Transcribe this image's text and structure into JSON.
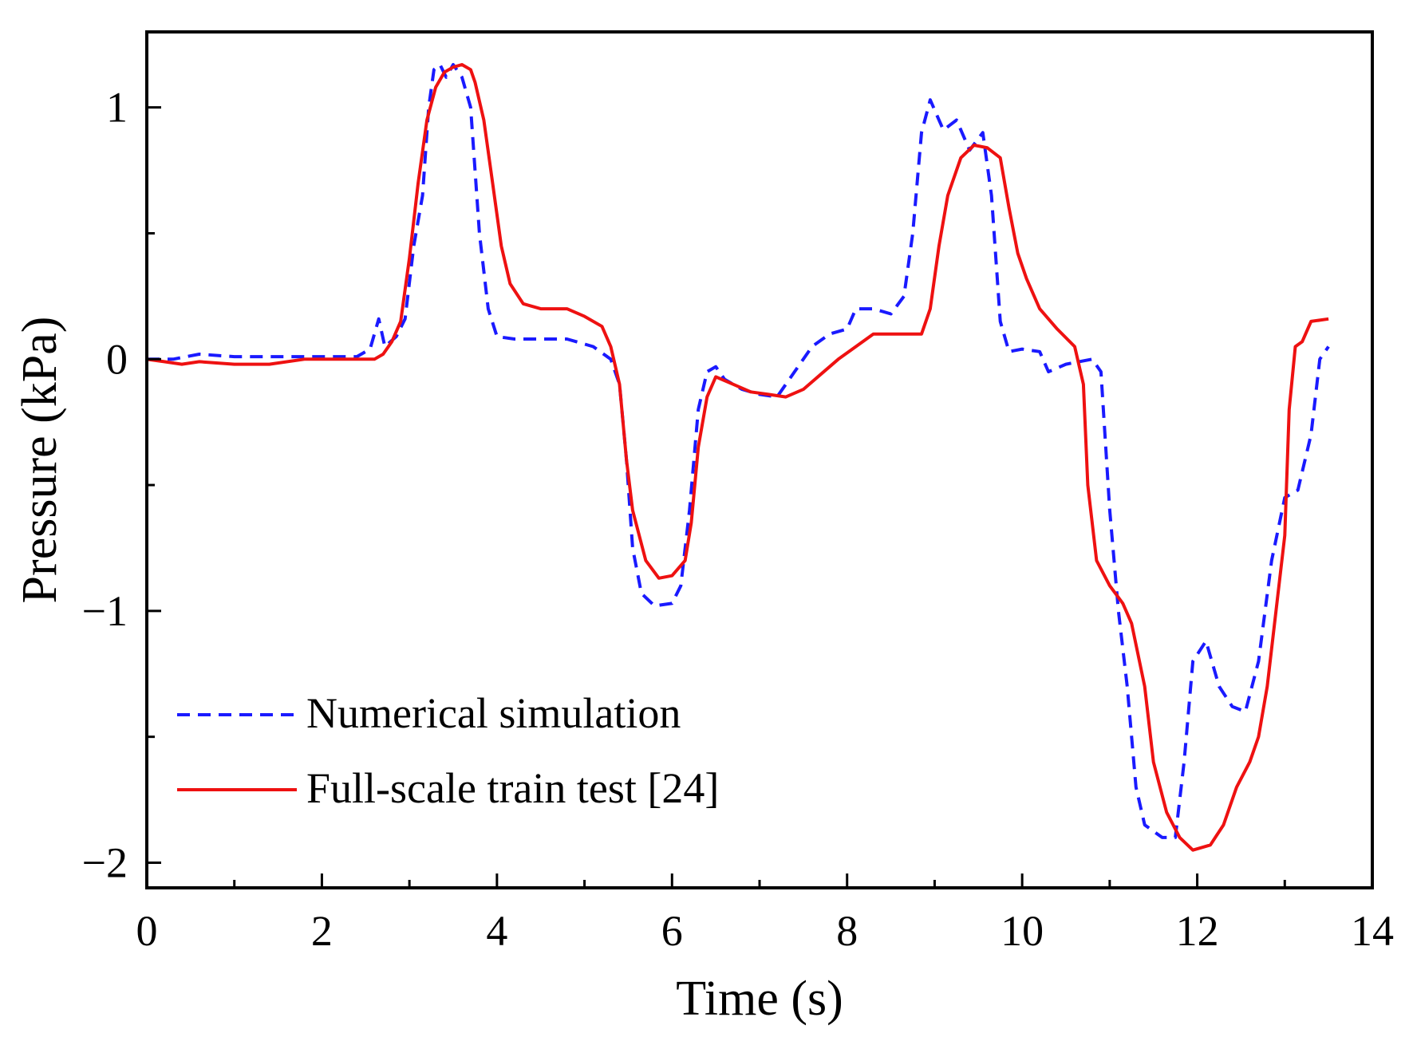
{
  "chart_data": {
    "type": "line",
    "title": "",
    "xlabel": "Time (s)",
    "ylabel": "Pressure (kPa)",
    "xlim": [
      0,
      14
    ],
    "ylim": [
      -2.1,
      1.3
    ],
    "xticks": [
      0,
      2,
      4,
      6,
      8,
      10,
      12,
      14
    ],
    "xtick_labels": [
      "0",
      "2",
      "4",
      "6",
      "8",
      "10",
      "12",
      "14"
    ],
    "yticks": [
      -2,
      -1,
      0,
      1
    ],
    "ytick_labels": [
      "−2",
      "−1",
      "0",
      "1"
    ],
    "grid": false,
    "legend_position": "bottom-left",
    "series": [
      {
        "name": "Numerical simulation",
        "color": "#1a1aff",
        "style": "dashed",
        "points": [
          [
            0,
            0.0
          ],
          [
            0.3,
            0.0
          ],
          [
            0.6,
            0.02
          ],
          [
            1.0,
            0.01
          ],
          [
            1.5,
            0.01
          ],
          [
            2.0,
            0.01
          ],
          [
            2.4,
            0.01
          ],
          [
            2.55,
            0.04
          ],
          [
            2.65,
            0.16
          ],
          [
            2.72,
            0.05
          ],
          [
            2.85,
            0.09
          ],
          [
            2.95,
            0.16
          ],
          [
            3.05,
            0.45
          ],
          [
            3.15,
            0.65
          ],
          [
            3.22,
            1.0
          ],
          [
            3.28,
            1.15
          ],
          [
            3.35,
            1.17
          ],
          [
            3.42,
            1.12
          ],
          [
            3.5,
            1.17
          ],
          [
            3.6,
            1.12
          ],
          [
            3.7,
            1.0
          ],
          [
            3.8,
            0.5
          ],
          [
            3.9,
            0.2
          ],
          [
            4.0,
            0.09
          ],
          [
            4.2,
            0.08
          ],
          [
            4.5,
            0.08
          ],
          [
            4.8,
            0.08
          ],
          [
            5.1,
            0.05
          ],
          [
            5.3,
            0.0
          ],
          [
            5.4,
            -0.1
          ],
          [
            5.48,
            -0.4
          ],
          [
            5.55,
            -0.75
          ],
          [
            5.65,
            -0.93
          ],
          [
            5.8,
            -0.98
          ],
          [
            6.0,
            -0.97
          ],
          [
            6.1,
            -0.9
          ],
          [
            6.2,
            -0.6
          ],
          [
            6.3,
            -0.2
          ],
          [
            6.4,
            -0.05
          ],
          [
            6.5,
            -0.03
          ],
          [
            6.6,
            -0.08
          ],
          [
            6.8,
            -0.12
          ],
          [
            7.0,
            -0.14
          ],
          [
            7.2,
            -0.15
          ],
          [
            7.4,
            -0.05
          ],
          [
            7.6,
            0.05
          ],
          [
            7.8,
            0.1
          ],
          [
            8.0,
            0.12
          ],
          [
            8.1,
            0.2
          ],
          [
            8.3,
            0.2
          ],
          [
            8.5,
            0.18
          ],
          [
            8.65,
            0.25
          ],
          [
            8.75,
            0.5
          ],
          [
            8.85,
            0.9
          ],
          [
            8.95,
            1.03
          ],
          [
            9.1,
            0.91
          ],
          [
            9.25,
            0.95
          ],
          [
            9.4,
            0.83
          ],
          [
            9.55,
            0.9
          ],
          [
            9.65,
            0.65
          ],
          [
            9.75,
            0.15
          ],
          [
            9.85,
            0.03
          ],
          [
            10.0,
            0.04
          ],
          [
            10.2,
            0.03
          ],
          [
            10.3,
            -0.05
          ],
          [
            10.5,
            -0.02
          ],
          [
            10.8,
            0.0
          ],
          [
            10.9,
            -0.05
          ],
          [
            11.0,
            -0.6
          ],
          [
            11.1,
            -1.0
          ],
          [
            11.2,
            -1.3
          ],
          [
            11.3,
            -1.7
          ],
          [
            11.4,
            -1.85
          ],
          [
            11.6,
            -1.9
          ],
          [
            11.75,
            -1.9
          ],
          [
            11.85,
            -1.6
          ],
          [
            11.95,
            -1.2
          ],
          [
            12.1,
            -1.12
          ],
          [
            12.25,
            -1.3
          ],
          [
            12.4,
            -1.38
          ],
          [
            12.55,
            -1.4
          ],
          [
            12.7,
            -1.2
          ],
          [
            12.85,
            -0.8
          ],
          [
            13.0,
            -0.55
          ],
          [
            13.15,
            -0.52
          ],
          [
            13.3,
            -0.3
          ],
          [
            13.4,
            0.0
          ],
          [
            13.5,
            0.05
          ]
        ]
      },
      {
        "name": "Full-scale train test [24]",
        "color": "#ee1111",
        "style": "solid",
        "points": [
          [
            0,
            0.0
          ],
          [
            0.2,
            -0.01
          ],
          [
            0.4,
            -0.02
          ],
          [
            0.6,
            -0.01
          ],
          [
            1.0,
            -0.02
          ],
          [
            1.4,
            -0.02
          ],
          [
            1.8,
            0.0
          ],
          [
            2.2,
            0.0
          ],
          [
            2.6,
            0.0
          ],
          [
            2.7,
            0.02
          ],
          [
            2.8,
            0.07
          ],
          [
            2.9,
            0.15
          ],
          [
            3.0,
            0.4
          ],
          [
            3.1,
            0.7
          ],
          [
            3.2,
            0.95
          ],
          [
            3.3,
            1.08
          ],
          [
            3.4,
            1.14
          ],
          [
            3.5,
            1.16
          ],
          [
            3.6,
            1.17
          ],
          [
            3.7,
            1.15
          ],
          [
            3.75,
            1.1
          ],
          [
            3.85,
            0.95
          ],
          [
            3.95,
            0.7
          ],
          [
            4.05,
            0.45
          ],
          [
            4.15,
            0.3
          ],
          [
            4.3,
            0.22
          ],
          [
            4.5,
            0.2
          ],
          [
            4.8,
            0.2
          ],
          [
            5.0,
            0.17
          ],
          [
            5.2,
            0.13
          ],
          [
            5.3,
            0.05
          ],
          [
            5.4,
            -0.1
          ],
          [
            5.48,
            -0.4
          ],
          [
            5.55,
            -0.6
          ],
          [
            5.7,
            -0.8
          ],
          [
            5.85,
            -0.87
          ],
          [
            6.0,
            -0.86
          ],
          [
            6.15,
            -0.8
          ],
          [
            6.22,
            -0.65
          ],
          [
            6.3,
            -0.35
          ],
          [
            6.4,
            -0.15
          ],
          [
            6.5,
            -0.07
          ],
          [
            6.7,
            -0.1
          ],
          [
            6.9,
            -0.13
          ],
          [
            7.1,
            -0.14
          ],
          [
            7.3,
            -0.15
          ],
          [
            7.5,
            -0.12
          ],
          [
            7.7,
            -0.06
          ],
          [
            7.9,
            0.0
          ],
          [
            8.1,
            0.05
          ],
          [
            8.3,
            0.1
          ],
          [
            8.6,
            0.1
          ],
          [
            8.85,
            0.1
          ],
          [
            8.95,
            0.2
          ],
          [
            9.05,
            0.45
          ],
          [
            9.15,
            0.65
          ],
          [
            9.3,
            0.8
          ],
          [
            9.45,
            0.85
          ],
          [
            9.6,
            0.84
          ],
          [
            9.75,
            0.8
          ],
          [
            9.85,
            0.6
          ],
          [
            9.95,
            0.42
          ],
          [
            10.05,
            0.32
          ],
          [
            10.2,
            0.2
          ],
          [
            10.4,
            0.12
          ],
          [
            10.6,
            0.05
          ],
          [
            10.7,
            -0.1
          ],
          [
            10.75,
            -0.5
          ],
          [
            10.85,
            -0.8
          ],
          [
            11.0,
            -0.9
          ],
          [
            11.15,
            -0.97
          ],
          [
            11.25,
            -1.05
          ],
          [
            11.4,
            -1.3
          ],
          [
            11.5,
            -1.6
          ],
          [
            11.65,
            -1.8
          ],
          [
            11.8,
            -1.9
          ],
          [
            11.95,
            -1.95
          ],
          [
            12.15,
            -1.93
          ],
          [
            12.3,
            -1.85
          ],
          [
            12.45,
            -1.7
          ],
          [
            12.6,
            -1.6
          ],
          [
            12.7,
            -1.5
          ],
          [
            12.8,
            -1.3
          ],
          [
            12.9,
            -1.0
          ],
          [
            13.0,
            -0.7
          ],
          [
            13.05,
            -0.2
          ],
          [
            13.12,
            0.05
          ],
          [
            13.2,
            0.07
          ],
          [
            13.3,
            0.15
          ],
          [
            13.5,
            0.16
          ]
        ]
      }
    ]
  }
}
